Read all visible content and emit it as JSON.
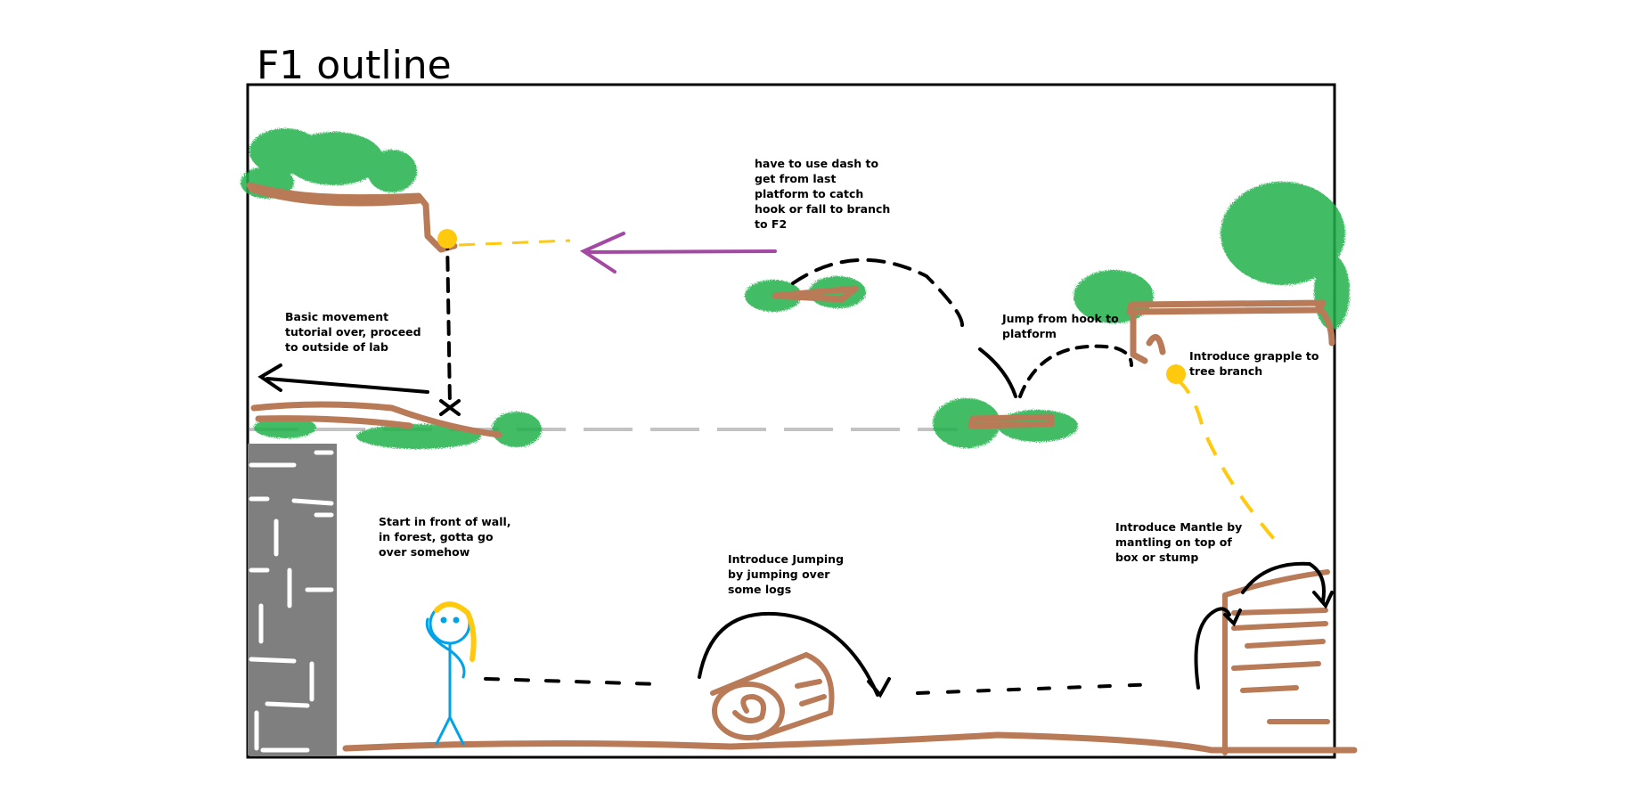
{
  "title": "F1 outline",
  "notes": {
    "dash": [
      "have to use dash to",
      "get from last",
      "platform to catch",
      "hook or fall to branch",
      "to F2"
    ],
    "basic": [
      "Basic movement",
      "tutorial over, proceed",
      "to outside of lab"
    ],
    "hook": [
      "Jump from hook to",
      "platform"
    ],
    "grapple": [
      "Introduce grapple to",
      "tree branch"
    ],
    "start": [
      "Start in front of wall,",
      "in forest, gotta go",
      "over somehow"
    ],
    "jump": [
      "Introduce Jumping",
      "by jumping over",
      "some logs"
    ],
    "mantle": [
      "Introduce Mantle by",
      "mantling on top of",
      "box or stump"
    ]
  },
  "colors": {
    "brown": "#b97a57",
    "green": "#22b14c",
    "yellow": "#ffc90e",
    "purple": "#a349a4",
    "blue": "#00a2e8",
    "gray": "#7f7f7f",
    "light_gray": "#c3c3c3"
  }
}
